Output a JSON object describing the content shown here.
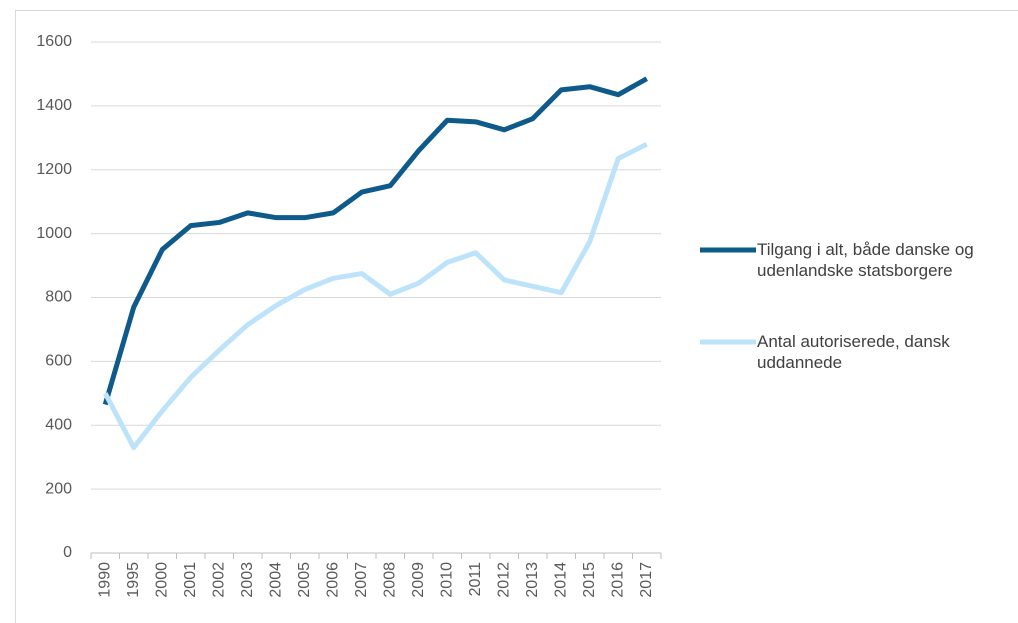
{
  "chart_data": {
    "type": "line",
    "categories": [
      "1990",
      "1995",
      "2000",
      "2001",
      "2002",
      "2003",
      "2004",
      "2005",
      "2006",
      "2007",
      "2008",
      "2009",
      "2010",
      "2011",
      "2012",
      "2013",
      "2014",
      "2015",
      "2016",
      "2017"
    ],
    "series": [
      {
        "name": "Tilgang i alt, både danske og udenlandske statsborgere",
        "color": "#0e5a8a",
        "values": [
          465,
          770,
          950,
          1025,
          1035,
          1065,
          1050,
          1050,
          1065,
          1130,
          1150,
          1260,
          1355,
          1350,
          1325,
          1360,
          1450,
          1460,
          1435,
          1485
        ]
      },
      {
        "name": "Antal autoriserede, dansk uddannede",
        "color": "#bde3fb",
        "values": [
          500,
          330,
          445,
          550,
          635,
          715,
          775,
          825,
          860,
          875,
          810,
          845,
          910,
          940,
          855,
          835,
          815,
          975,
          1235,
          1280
        ]
      }
    ],
    "ylim": [
      0,
      1600
    ],
    "yticks": [
      0,
      200,
      400,
      600,
      800,
      1000,
      1200,
      1400,
      1600
    ],
    "grid": true,
    "legend": "right"
  }
}
